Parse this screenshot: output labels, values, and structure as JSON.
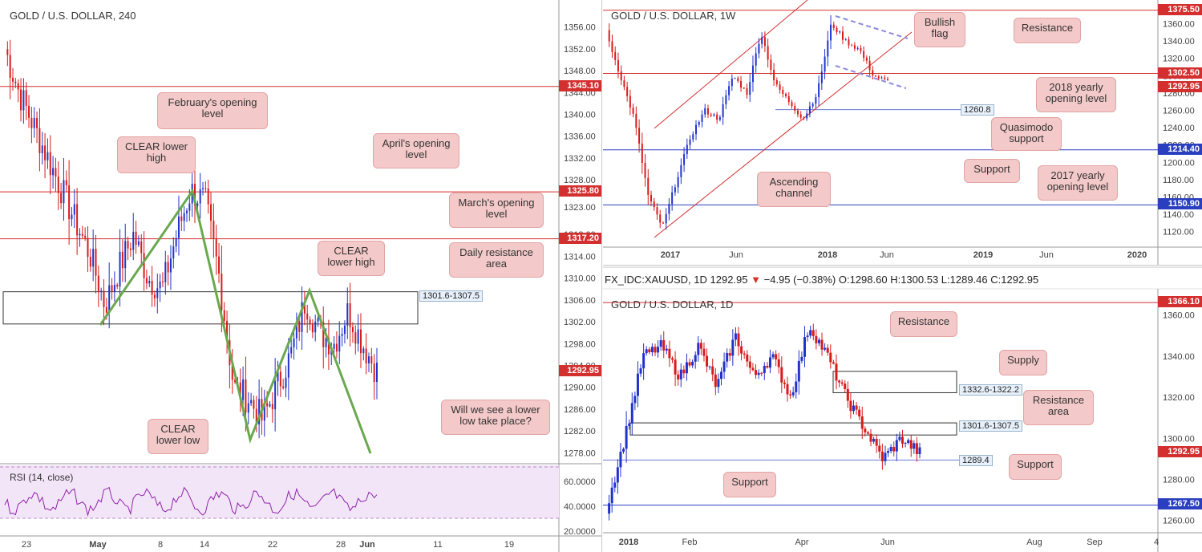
{
  "colors": {
    "bull": "#2233cc",
    "bear": "#d81b1b",
    "red_line": "#d32f2f",
    "blue_line": "#2a3fbf",
    "green": "#6aa84f",
    "callout_bg": "#f4c9c9",
    "rsi_bg": "#f3e5f8",
    "rsi_line": "#8e24aa"
  },
  "panel_4h": {
    "title": "GOLD / U.S. DOLLAR, 240",
    "y_ticks": [
      "1356.00",
      "1352.00",
      "1348.00",
      "1344.00",
      "1340.00",
      "1336.00",
      "1332.00",
      "1328.00",
      "1323.00",
      "1318.00",
      "1314.00",
      "1310.00",
      "1306.00",
      "1302.00",
      "1298.00",
      "1294.00",
      "1290.00",
      "1286.00",
      "1282.00",
      "1278.00"
    ],
    "x_labels": [
      "23",
      "May",
      "8",
      "14",
      "22",
      "28",
      "Jun",
      "11",
      "19"
    ],
    "price_tags": [
      {
        "label": "1345.10",
        "color": "#d32f2f"
      },
      {
        "label": "1325.80",
        "color": "#d32f2f"
      },
      {
        "label": "1317.20",
        "color": "#d32f2f"
      },
      {
        "label": "1292.95",
        "color": "#d32f2f"
      }
    ],
    "zone_label": "1301.6-1307.5",
    "callouts": [
      "February's opening level",
      "CLEAR lower high",
      "April's opening level",
      "March's opening level",
      "Daily resistance area",
      "CLEAR lower high",
      "Will we see a lower low take place?",
      "CLEAR lower low"
    ],
    "rsi": {
      "title": "RSI (14, close)",
      "ticks": [
        "60.0000",
        "40.0000",
        "20.0000"
      ]
    }
  },
  "panel_1w": {
    "title": "GOLD / U.S. DOLLAR, 1W",
    "y_ticks": [
      "1360.00",
      "1340.00",
      "1320.00",
      "1300.00",
      "1280.00",
      "1260.00",
      "1240.00",
      "1220.00",
      "1200.00",
      "1180.00",
      "1160.00",
      "1140.00",
      "1120.00"
    ],
    "x_labels": [
      "2017",
      "Jun",
      "2018",
      "Jun",
      "2019",
      "Jun",
      "2020"
    ],
    "price_tags": [
      {
        "label": "1375.50",
        "color": "#d32f2f"
      },
      {
        "label": "1302.50",
        "color": "#d32f2f"
      },
      {
        "label": "1292.95",
        "color": "#d32f2f"
      },
      {
        "label": "1214.40",
        "color": "#2a3fbf"
      },
      {
        "label": "1150.90",
        "color": "#2a3fbf"
      }
    ],
    "zone_label": "1260.8",
    "callouts": [
      "Bullish flag",
      "Resistance",
      "2018 yearly opening level",
      "Quasimodo support",
      "Support",
      "2017 yearly opening level",
      "Ascending channel"
    ]
  },
  "panel_1d": {
    "symbol_line": {
      "sym": "FX_IDC:XAUUSD, 1D",
      "last": "1292.95",
      "change": "−4.95 (−0.38%)",
      "ohlc": "O:1298.60 H:1300.53 L:1289.46 C:1292.95"
    },
    "title": "GOLD / U.S. DOLLAR, 1D",
    "y_ticks": [
      "1360.00",
      "1340.00",
      "1320.00",
      "1300.00",
      "1280.00",
      "1260.00"
    ],
    "x_labels": [
      "2018",
      "Feb",
      "Apr",
      "Jun",
      "Aug",
      "Sep",
      "4"
    ],
    "price_tags": [
      {
        "label": "1366.10",
        "color": "#d32f2f"
      },
      {
        "label": "1292.95",
        "color": "#d32f2f"
      },
      {
        "label": "1267.50",
        "color": "#2a3fbf"
      }
    ],
    "zone_labels": [
      "1332.6-1322.2",
      "1301.6-1307.5",
      "1289.4"
    ],
    "callouts": [
      "Resistance",
      "Supply",
      "Resistance area",
      "Support",
      "Support"
    ]
  }
}
